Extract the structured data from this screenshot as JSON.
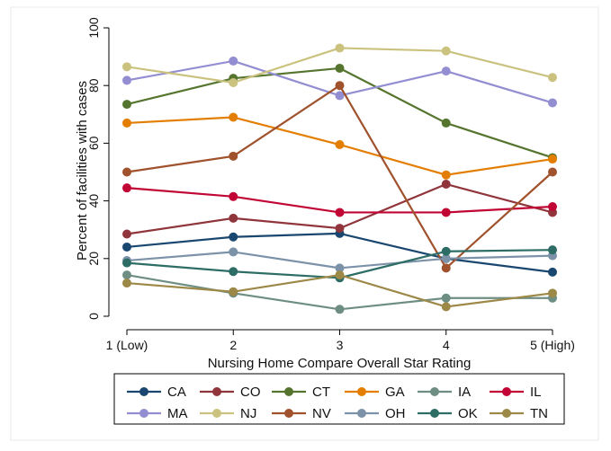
{
  "chart_data": {
    "type": "line",
    "xlabel": "Nursing Home Compare Overall Star Rating",
    "ylabel": "Percent of facilities with cases",
    "x": [
      1,
      2,
      3,
      4,
      5
    ],
    "categories": [
      "1 (Low)",
      "2",
      "3",
      "4",
      "5 (High)"
    ],
    "ylim": [
      0,
      100
    ],
    "yticks": [
      0,
      20,
      40,
      60,
      80,
      100
    ],
    "grid": false,
    "legend_position": "bottom",
    "series": [
      {
        "name": "CA",
        "color": "#1a476f",
        "values": [
          24,
          27.5,
          28.7,
          20,
          15.3
        ]
      },
      {
        "name": "CO",
        "color": "#90353b",
        "values": [
          28.5,
          34,
          30.5,
          45.8,
          36
        ]
      },
      {
        "name": "CT",
        "color": "#55752f",
        "values": [
          73.5,
          82.5,
          86,
          67,
          55
        ]
      },
      {
        "name": "GA",
        "color": "#e37e00",
        "values": [
          67,
          69,
          59.5,
          49,
          54.5
        ]
      },
      {
        "name": "IA",
        "color": "#6e8e84",
        "values": [
          14.3,
          8,
          2.4,
          6.3,
          6.3
        ]
      },
      {
        "name": "IL",
        "color": "#c10534",
        "values": [
          44.5,
          41.5,
          36,
          36,
          38
        ]
      },
      {
        "name": "MA",
        "color": "#938dd2",
        "values": [
          81.8,
          88.5,
          76.5,
          85,
          74
        ]
      },
      {
        "name": "NJ",
        "color": "#cac27e",
        "values": [
          86.5,
          81,
          93,
          92,
          82.8
        ]
      },
      {
        "name": "NV",
        "color": "#a0522d",
        "values": [
          50,
          55.5,
          80,
          16.7,
          50
        ]
      },
      {
        "name": "OH",
        "color": "#7b92a8",
        "values": [
          19.3,
          22.3,
          16.7,
          20,
          21
        ]
      },
      {
        "name": "OK",
        "color": "#2d6d66",
        "values": [
          18.5,
          15.5,
          13.3,
          22.5,
          23
        ]
      },
      {
        "name": "TN",
        "color": "#9c8847",
        "values": [
          11.5,
          8.5,
          14.3,
          3.3,
          8
        ]
      }
    ]
  }
}
